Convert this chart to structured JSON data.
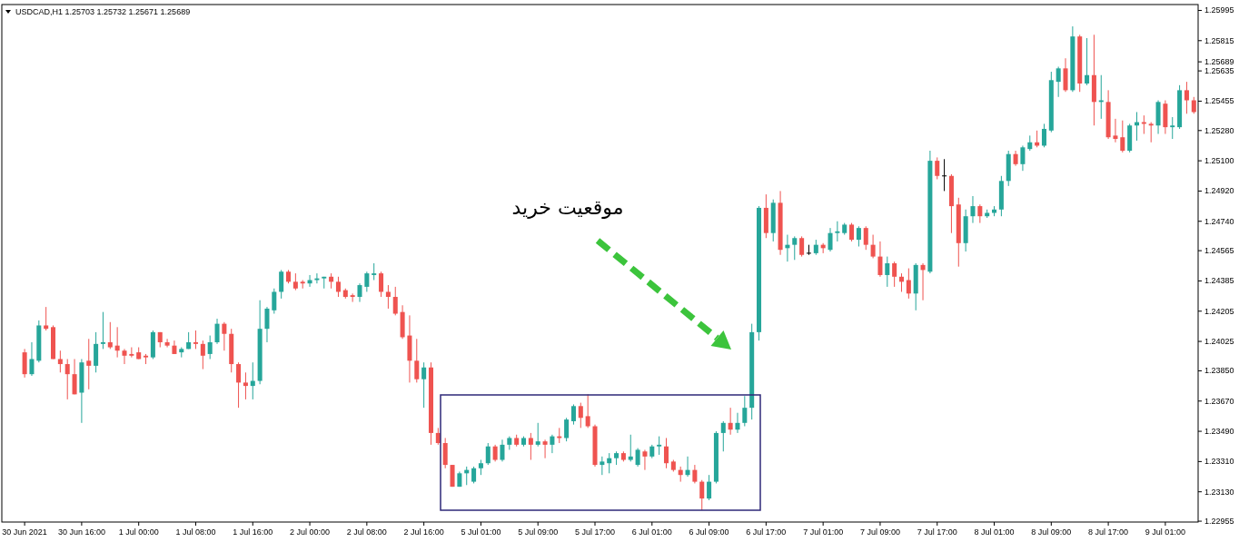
{
  "chart_data": {
    "type": "candlestick",
    "title": "USDCAD,H1  1.25703 1.25732 1.25671 1.25689",
    "annotations": [
      "موقعیت خرید"
    ],
    "categories": [
      "30 Jun 2021",
      null,
      null,
      null,
      null,
      null,
      null,
      null,
      "30 Jun 16:00",
      null,
      null,
      null,
      null,
      null,
      null,
      null,
      "1 Jul 00:00",
      null,
      null,
      null,
      null,
      null,
      null,
      null,
      "1 Jul 08:00",
      null,
      null,
      null,
      null,
      null,
      null,
      null,
      "1 Jul 16:00",
      null,
      null,
      null,
      null,
      null,
      null,
      null,
      "2 Jul 00:00",
      null,
      null,
      null,
      null,
      null,
      null,
      null,
      "2 Jul 08:00",
      null,
      null,
      null,
      null,
      null,
      null,
      null,
      "2 Jul 16:00",
      null,
      null,
      null,
      null,
      null,
      null,
      null,
      "5 Jul 01:00",
      null,
      null,
      null,
      null,
      null,
      null,
      null,
      "5 Jul 09:00",
      null,
      null,
      null,
      null,
      null,
      null,
      null,
      "5 Jul 17:00",
      null,
      null,
      null,
      null,
      null,
      null,
      null,
      "6 Jul 01:00",
      null,
      null,
      null,
      null,
      null,
      null,
      null,
      "6 Jul 09:00",
      null,
      null,
      null,
      null,
      null,
      null,
      null,
      "6 Jul 17:00",
      null,
      null,
      null,
      null,
      null,
      null,
      null,
      "7 Jul 01:00",
      null,
      null,
      null,
      null,
      null,
      null,
      null,
      "7 Jul 09:00",
      null,
      null,
      null,
      null,
      null,
      null,
      null,
      "7 Jul 17:00",
      null,
      null,
      null,
      null,
      null,
      null,
      null,
      "8 Jul 01:00",
      null,
      null,
      null,
      null,
      null,
      null,
      null,
      "8 Jul 09:00",
      null,
      null,
      null,
      null,
      null,
      null,
      null,
      "8 Jul 17:00",
      null,
      null,
      null,
      null,
      null,
      null,
      null,
      "9 Jul 01:00",
      null,
      null,
      null,
      null
    ],
    "ohlc": [
      [
        1.2396,
        1.2398,
        1.2381,
        1.2383
      ],
      [
        1.2383,
        1.2402,
        1.2382,
        1.2392
      ],
      [
        1.2391,
        1.2415,
        1.239,
        1.2412
      ],
      [
        1.2412,
        1.2423,
        1.2409,
        1.241
      ],
      [
        1.2411,
        1.2412,
        1.2392,
        1.2392
      ],
      [
        1.2392,
        1.2397,
        1.2384,
        1.2389
      ],
      [
        1.2389,
        1.2392,
        1.2368,
        1.2383
      ],
      [
        1.2383,
        1.2392,
        1.2371,
        1.2371
      ],
      [
        1.2372,
        1.2392,
        1.2354,
        1.239
      ],
      [
        1.2391,
        1.2404,
        1.2374,
        1.2388
      ],
      [
        1.2388,
        1.2408,
        1.2384,
        1.2401
      ],
      [
        1.2401,
        1.242,
        1.2398,
        1.2402
      ],
      [
        1.2402,
        1.2414,
        1.2398,
        1.2399
      ],
      [
        1.24,
        1.2411,
        1.2393,
        1.2397
      ],
      [
        1.2397,
        1.2398,
        1.2389,
        1.2394
      ],
      [
        1.2395,
        1.2399,
        1.2393,
        1.2394
      ],
      [
        1.2396,
        1.2399,
        1.2392,
        1.2392
      ],
      [
        1.2394,
        1.2395,
        1.2389,
        1.2393
      ],
      [
        1.2393,
        1.2409,
        1.2392,
        1.2408
      ],
      [
        1.2408,
        1.2408,
        1.2399,
        1.2402
      ],
      [
        1.2402,
        1.2404,
        1.2399,
        1.24
      ],
      [
        1.24,
        1.2403,
        1.2395,
        1.2395
      ],
      [
        1.2396,
        1.2399,
        1.2393,
        1.2398
      ],
      [
        1.2398,
        1.2408,
        1.2398,
        1.2402
      ],
      [
        1.2402,
        1.2409,
        1.2398,
        1.2401
      ],
      [
        1.2401,
        1.2403,
        1.2386,
        1.2394
      ],
      [
        1.2395,
        1.2406,
        1.2392,
        1.2402
      ],
      [
        1.2402,
        1.2416,
        1.2401,
        1.2413
      ],
      [
        1.2413,
        1.2414,
        1.2397,
        1.2407
      ],
      [
        1.2407,
        1.241,
        1.2384,
        1.2389
      ],
      [
        1.2389,
        1.239,
        1.2363,
        1.2378
      ],
      [
        1.2378,
        1.2384,
        1.2368,
        1.2376
      ],
      [
        1.2376,
        1.239,
        1.2368,
        1.2379
      ],
      [
        1.2379,
        1.2427,
        1.2377,
        1.241
      ],
      [
        1.241,
        1.2423,
        1.2402,
        1.2422
      ],
      [
        1.2421,
        1.2434,
        1.2419,
        1.2432
      ],
      [
        1.2432,
        1.2445,
        1.2428,
        1.2444
      ],
      [
        1.2444,
        1.2445,
        1.2437,
        1.2438
      ],
      [
        1.2438,
        1.2443,
        1.2433,
        1.2434
      ],
      [
        1.2438,
        1.2439,
        1.2434,
        1.2437
      ],
      [
        1.2437,
        1.2442,
        1.2435,
        1.2439
      ],
      [
        1.2439,
        1.2443,
        1.2437,
        1.244
      ],
      [
        1.244,
        1.2441,
        1.2434,
        1.2441
      ],
      [
        1.2441,
        1.2443,
        1.2434,
        1.2438
      ],
      [
        1.2438,
        1.2441,
        1.2429,
        1.2432
      ],
      [
        1.2433,
        1.2434,
        1.2428,
        1.2429
      ],
      [
        1.243,
        1.2431,
        1.2426,
        1.2429
      ],
      [
        1.2429,
        1.2437,
        1.2426,
        1.2436
      ],
      [
        1.2435,
        1.2444,
        1.2432,
        1.2443
      ],
      [
        1.2442,
        1.2449,
        1.2439,
        1.2443
      ],
      [
        1.2443,
        1.2444,
        1.2429,
        1.2432
      ],
      [
        1.2432,
        1.2436,
        1.2422,
        1.2429
      ],
      [
        1.2429,
        1.2435,
        1.2418,
        1.2419
      ],
      [
        1.242,
        1.2424,
        1.2404,
        1.2405
      ],
      [
        1.2406,
        1.2418,
        1.2378,
        1.2391
      ],
      [
        1.2391,
        1.2404,
        1.2378,
        1.238
      ],
      [
        1.238,
        1.239,
        1.2363,
        1.2387
      ],
      [
        1.2387,
        1.239,
        1.2341,
        1.2348
      ],
      [
        1.2348,
        1.2351,
        1.2341,
        1.2342
      ],
      [
        1.2342,
        1.2345,
        1.2327,
        1.2329
      ],
      [
        1.2329,
        1.2329,
        1.2316,
        1.2316
      ],
      [
        1.2316,
        1.2325,
        1.2316,
        1.2324
      ],
      [
        1.2324,
        1.2328,
        1.2317,
        1.2326
      ],
      [
        1.2319,
        1.2328,
        1.2318,
        1.2327
      ],
      [
        1.2327,
        1.2332,
        1.2323,
        1.233
      ],
      [
        1.233,
        1.2342,
        1.2329,
        1.234
      ],
      [
        1.234,
        1.2341,
        1.2331,
        1.2332
      ],
      [
        1.2332,
        1.2344,
        1.2331,
        1.2341
      ],
      [
        1.2341,
        1.2346,
        1.2338,
        1.2345
      ],
      [
        1.2345,
        1.2347,
        1.234,
        1.2341
      ],
      [
        1.2341,
        1.2346,
        1.234,
        1.2345
      ],
      [
        1.2345,
        1.2348,
        1.2332,
        1.2341
      ],
      [
        1.2341,
        1.2354,
        1.234,
        1.2343
      ],
      [
        1.2343,
        1.2344,
        1.2333,
        1.2341
      ],
      [
        1.2341,
        1.2347,
        1.2336,
        1.2346
      ],
      [
        1.2346,
        1.2351,
        1.2342,
        1.2345
      ],
      [
        1.2345,
        1.2357,
        1.2343,
        1.2356
      ],
      [
        1.2355,
        1.2365,
        1.2353,
        1.2364
      ],
      [
        1.2364,
        1.2366,
        1.2351,
        1.2357
      ],
      [
        1.2358,
        1.2371,
        1.2351,
        1.2352
      ],
      [
        1.2352,
        1.2353,
        1.2328,
        1.2329
      ],
      [
        1.2329,
        1.2334,
        1.2323,
        1.2331
      ],
      [
        1.233,
        1.2336,
        1.2324,
        1.2333
      ],
      [
        1.2333,
        1.2337,
        1.2329,
        1.2336
      ],
      [
        1.2336,
        1.2337,
        1.2331,
        1.2332
      ],
      [
        1.2332,
        1.2347,
        1.2331,
        1.2334
      ],
      [
        1.2329,
        1.2339,
        1.2328,
        1.2338
      ],
      [
        1.2337,
        1.2338,
        1.2326,
        1.2334
      ],
      [
        1.2334,
        1.2341,
        1.2333,
        1.234
      ],
      [
        1.234,
        1.2346,
        1.2335,
        1.2341
      ],
      [
        1.234,
        1.2345,
        1.2327,
        1.233
      ],
      [
        1.2331,
        1.2332,
        1.2325,
        1.2326
      ],
      [
        1.2326,
        1.2328,
        1.2319,
        1.2323
      ],
      [
        1.2323,
        1.2334,
        1.2322,
        1.2326
      ],
      [
        1.2326,
        1.2329,
        1.2318,
        1.2319
      ],
      [
        1.2319,
        1.232,
        1.2302,
        1.2309
      ],
      [
        1.2309,
        1.2323,
        1.2308,
        1.2319
      ],
      [
        1.2319,
        1.2349,
        1.2318,
        1.2348
      ],
      [
        1.2348,
        1.2355,
        1.2337,
        1.2354
      ],
      [
        1.2354,
        1.2363,
        1.2347,
        1.235
      ],
      [
        1.235,
        1.236,
        1.2348,
        1.2354
      ],
      [
        1.2354,
        1.237,
        1.2352,
        1.2363
      ],
      [
        1.2363,
        1.2413,
        1.2356,
        1.2408
      ],
      [
        1.2408,
        1.2483,
        1.2403,
        1.2482
      ],
      [
        1.2482,
        1.249,
        1.2464,
        1.2467
      ],
      [
        1.2467,
        1.2487,
        1.2462,
        1.2485
      ],
      [
        1.2485,
        1.2492,
        1.2454,
        1.2457
      ],
      [
        1.2458,
        1.2466,
        1.245,
        1.246
      ],
      [
        1.246,
        1.2465,
        1.2451,
        1.2464
      ],
      [
        1.2464,
        1.2465,
        1.2453,
        1.2454
      ],
      [
        1.2455,
        1.246,
        1.2454,
        1.2455
      ],
      [
        1.2455,
        1.2463,
        1.2454,
        1.246
      ],
      [
        1.246,
        1.2461,
        1.2455,
        1.2458
      ],
      [
        1.2457,
        1.247,
        1.2456,
        1.2467
      ],
      [
        1.2467,
        1.2474,
        1.2462,
        1.2468
      ],
      [
        1.2467,
        1.2473,
        1.2466,
        1.2472
      ],
      [
        1.2472,
        1.2473,
        1.2462,
        1.2463
      ],
      [
        1.2463,
        1.2471,
        1.2459,
        1.247
      ],
      [
        1.247,
        1.2471,
        1.2457,
        1.246
      ],
      [
        1.246,
        1.2466,
        1.2452,
        1.2453
      ],
      [
        1.2453,
        1.2462,
        1.2441,
        1.2442
      ],
      [
        1.2442,
        1.2453,
        1.2435,
        1.2449
      ],
      [
        1.2449,
        1.245,
        1.2435,
        1.2441
      ],
      [
        1.2441,
        1.2443,
        1.2432,
        1.2438
      ],
      [
        1.2439,
        1.2446,
        1.2428,
        1.2431
      ],
      [
        1.2431,
        1.2449,
        1.2421,
        1.2448
      ],
      [
        1.2448,
        1.2449,
        1.2427,
        1.2445
      ],
      [
        1.2444,
        1.2516,
        1.2443,
        1.251
      ],
      [
        1.251,
        1.2512,
        1.2499,
        1.2501
      ],
      [
        1.2501,
        1.2511,
        1.2492,
        1.2501
      ],
      [
        1.2501,
        1.2502,
        1.2467,
        1.2483
      ],
      [
        1.2484,
        1.2488,
        1.2447,
        1.2461
      ],
      [
        1.2461,
        1.2481,
        1.2456,
        1.2477
      ],
      [
        1.2477,
        1.2489,
        1.2473,
        1.2483
      ],
      [
        1.2483,
        1.2484,
        1.2473,
        1.2477
      ],
      [
        1.2477,
        1.2481,
        1.2476,
        1.2479
      ],
      [
        1.2479,
        1.2483,
        1.2477,
        1.2481
      ],
      [
        1.2481,
        1.2501,
        1.2477,
        1.2498
      ],
      [
        1.2498,
        1.2516,
        1.2495,
        1.2514
      ],
      [
        1.2514,
        1.2516,
        1.2507,
        1.2508
      ],
      [
        1.2508,
        1.2519,
        1.2504,
        1.2518
      ],
      [
        1.2517,
        1.2525,
        1.2516,
        1.2521
      ],
      [
        1.2521,
        1.2528,
        1.2518,
        1.2519
      ],
      [
        1.2519,
        1.2532,
        1.2518,
        1.2529
      ],
      [
        1.2528,
        1.2563,
        1.2527,
        1.2558
      ],
      [
        1.2557,
        1.2566,
        1.2548,
        1.2565
      ],
      [
        1.2565,
        1.2571,
        1.2551,
        1.2552
      ],
      [
        1.2552,
        1.259,
        1.2551,
        1.2584
      ],
      [
        1.2584,
        1.2585,
        1.2551,
        1.2556
      ],
      [
        1.2556,
        1.2583,
        1.2555,
        1.2561
      ],
      [
        1.2561,
        1.2585,
        1.2531,
        1.2545
      ],
      [
        1.2545,
        1.2561,
        1.2535,
        1.2546
      ],
      [
        1.2545,
        1.2552,
        1.2523,
        1.2524
      ],
      [
        1.2525,
        1.2535,
        1.2521,
        1.2523
      ],
      [
        1.2524,
        1.2534,
        1.2515,
        1.2516
      ],
      [
        1.2516,
        1.2532,
        1.2515,
        1.2531
      ],
      [
        1.2531,
        1.2539,
        1.2522,
        1.2533
      ],
      [
        1.2533,
        1.2537,
        1.2526,
        1.2532
      ],
      [
        1.2532,
        1.2533,
        1.2521,
        1.2531
      ],
      [
        1.2531,
        1.2546,
        1.2526,
        1.2545
      ],
      [
        1.2544,
        1.2546,
        1.2526,
        1.253
      ],
      [
        1.253,
        1.2536,
        1.2523,
        1.2531
      ],
      [
        1.253,
        1.2555,
        1.2529,
        1.2552
      ],
      [
        1.2552,
        1.2557,
        1.2538,
        1.2546
      ],
      [
        1.2546,
        1.2548,
        1.2538,
        1.2539
      ]
    ],
    "colors": [
      "#ef5350",
      "#26a69a",
      "#26a69a",
      "#ef5350",
      "#ef5350",
      "#ef5350",
      "#ef5350",
      "#ef5350",
      "#26a69a",
      "#ef5350",
      "#26a69a",
      "#26a69a",
      "#ef5350",
      "#ef5350",
      "#ef5350",
      "#ef5350",
      "#ef5350",
      "#ef5350",
      "#26a69a",
      "#ef5350",
      "#ef5350",
      "#ef5350",
      "#26a69a",
      "#26a69a",
      "#ef5350",
      "#ef5350",
      "#26a69a",
      "#26a69a",
      "#ef5350",
      "#ef5350",
      "#ef5350",
      "#ef5350",
      "#26a69a",
      "#26a69a",
      "#26a69a",
      "#26a69a",
      "#26a69a",
      "#ef5350",
      "#ef5350",
      "#ef5350",
      "#26a69a",
      "#26a69a",
      "#26a69a",
      "#ef5350",
      "#ef5350",
      "#ef5350",
      "#ef5350",
      "#26a69a",
      "#26a69a",
      "#26a69a",
      "#ef5350",
      "#ef5350",
      "#ef5350",
      "#ef5350",
      "#ef5350",
      "#ef5350",
      "#26a69a",
      "#ef5350",
      "#ef5350",
      "#ef5350",
      "#ef5350",
      "#26a69a",
      "#26a69a",
      "#26a69a",
      "#26a69a",
      "#26a69a",
      "#ef5350",
      "#26a69a",
      "#26a69a",
      "#ef5350",
      "#26a69a",
      "#ef5350",
      "#26a69a",
      "#ef5350",
      "#26a69a",
      "#ef5350",
      "#26a69a",
      "#26a69a",
      "#ef5350",
      "#ef5350",
      "#ef5350",
      "#26a69a",
      "#26a69a",
      "#26a69a",
      "#ef5350",
      "#26a69a",
      "#26a69a",
      "#ef5350",
      "#26a69a",
      "#26a69a",
      "#ef5350",
      "#ef5350",
      "#ef5350",
      "#26a69a",
      "#ef5350",
      "#ef5350",
      "#26a69a",
      "#26a69a",
      "#26a69a",
      "#ef5350",
      "#26a69a",
      "#26a69a",
      "#26a69a",
      "#26a69a",
      "#ef5350",
      "#26a69a",
      "#ef5350",
      "#26a69a",
      "#26a69a",
      "#ef5350",
      "#000000",
      "#26a69a",
      "#ef5350",
      "#26a69a",
      "#26a69a",
      "#26a69a",
      "#ef5350",
      "#26a69a",
      "#ef5350",
      "#ef5350",
      "#ef5350",
      "#26a69a",
      "#ef5350",
      "#ef5350",
      "#ef5350",
      "#26a69a",
      "#ef5350",
      "#26a69a",
      "#ef5350",
      "#000000",
      "#ef5350",
      "#ef5350",
      "#26a69a",
      "#26a69a",
      "#ef5350",
      "#26a69a",
      "#26a69a",
      "#26a69a",
      "#26a69a",
      "#ef5350",
      "#26a69a",
      "#26a69a",
      "#ef5350",
      "#26a69a",
      "#26a69a",
      "#26a69a",
      "#ef5350",
      "#26a69a",
      "#ef5350",
      "#26a69a",
      "#ef5350",
      "#26a69a",
      "#ef5350",
      "#ef5350",
      "#ef5350",
      "#26a69a",
      "#26a69a",
      "#ef5350",
      "#ef5350",
      "#26a69a",
      "#ef5350",
      "#26a69a",
      "#26a69a",
      "#ef5350",
      "#ef5350"
    ],
    "ylim": [
      1.2295,
      1.2603
    ],
    "yticks": [
      1.25995,
      1.25815,
      1.25689,
      1.25635,
      1.25455,
      {
        "value": 1.2528,
        "label": "1.25280"
      },
      {
        "value": 1.251,
        "label": "1.25100"
      },
      {
        "value": 1.2492,
        "label": "1.24920"
      },
      {
        "value": 1.2474,
        "label": "1.24740"
      },
      1.24565,
      1.24385,
      1.24205,
      1.24025,
      {
        "value": 1.2385,
        "label": "1.23850"
      },
      {
        "value": 1.2367,
        "label": "1.23670"
      },
      {
        "value": 1.2349,
        "label": "1.23490"
      },
      {
        "value": 1.2331,
        "label": "1.23310"
      },
      {
        "value": 1.2313,
        "label": "1.23130"
      },
      1.22955
    ]
  }
}
